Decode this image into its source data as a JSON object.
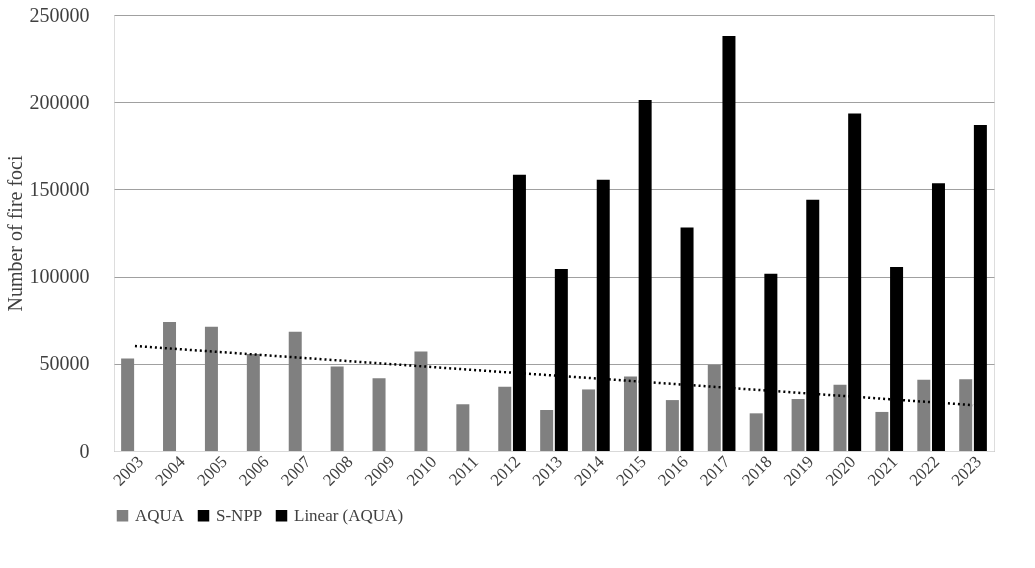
{
  "chart_data": {
    "type": "bar",
    "ylabel": "Number of fire foci",
    "categories": [
      "2003",
      "2004",
      "2005",
      "2006",
      "2007",
      "2008",
      "2009",
      "2010",
      "2011",
      "2012",
      "2013",
      "2014",
      "2015",
      "2016",
      "2017",
      "2018",
      "2019",
      "2020",
      "2021",
      "2022",
      "2023"
    ],
    "series": [
      {
        "name": "AQUA",
        "color": "#808080",
        "values": [
          53000,
          74000,
          71300,
          55600,
          68400,
          48400,
          41700,
          57000,
          26800,
          36900,
          23500,
          35300,
          42700,
          29200,
          49400,
          21600,
          29800,
          38000,
          22400,
          40800,
          41200
        ]
      },
      {
        "name": "S-NPP",
        "color": "#000000",
        "values": [
          null,
          null,
          null,
          null,
          null,
          null,
          null,
          null,
          null,
          158400,
          104300,
          155500,
          201200,
          128200,
          238000,
          101600,
          144100,
          193500,
          105500,
          153500,
          186900
        ]
      },
      {
        "name": "Linear (AQUA)",
        "type": "line",
        "color": "#000000",
        "line_style": "dotted",
        "values": [
          60200,
          58500,
          56800,
          55100,
          53400,
          51700,
          50000,
          48300,
          46600,
          44900,
          43300,
          41600,
          39900,
          38200,
          36500,
          34800,
          33100,
          31400,
          29700,
          28000,
          26300
        ]
      }
    ],
    "ylim": [
      0,
      250000
    ],
    "yticks": [
      0,
      50000,
      100000,
      150000,
      200000,
      250000
    ],
    "grid": "y",
    "legend": "bottom"
  }
}
